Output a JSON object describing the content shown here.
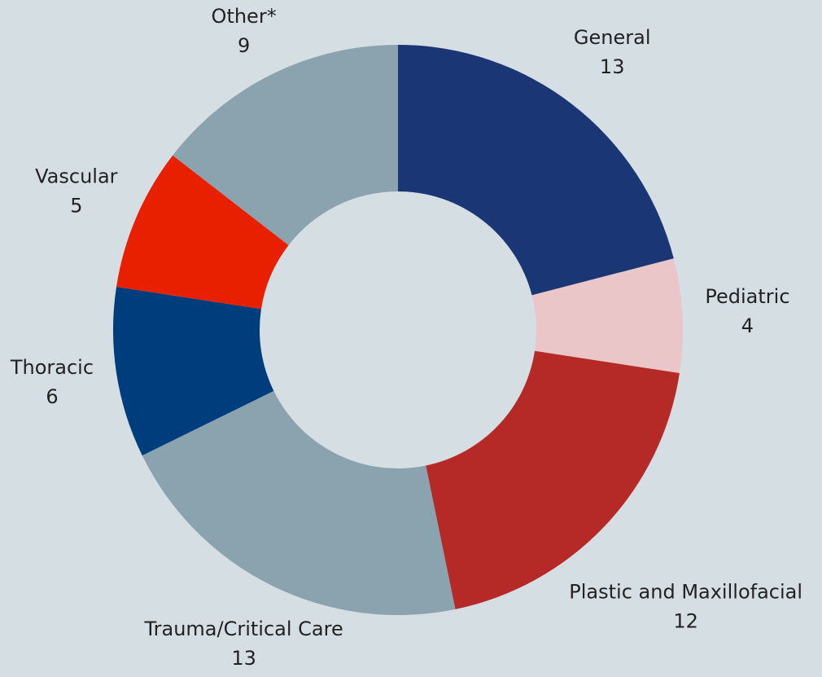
{
  "chart_data": {
    "type": "donut",
    "categories": [
      "General",
      "Pediatric",
      "Plastic and Maxillofacial",
      "Trauma/Critical Care",
      "Thoracic",
      "Vascular",
      "Other*"
    ],
    "values": [
      13,
      4,
      12,
      13,
      6,
      5,
      9
    ],
    "colors": [
      "#1b3674",
      "#ebc6c8",
      "#b52a27",
      "#8ba3af",
      "#003d7c",
      "#e82000",
      "#8ba3af"
    ]
  }
}
